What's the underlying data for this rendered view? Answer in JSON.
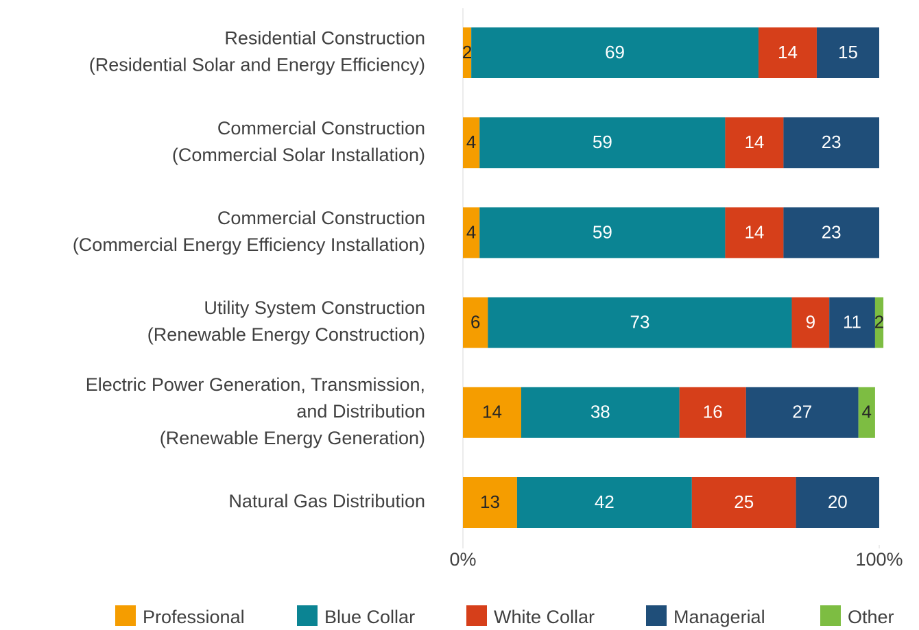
{
  "chart_data": {
    "type": "stacked-barh",
    "categories": [
      [
        "Residential Construction",
        "(Residential Solar and Energy Efficiency)"
      ],
      [
        "Commercial Construction",
        "(Commercial Solar Installation)"
      ],
      [
        "Commercial Construction",
        "(Commercial Energy Efficiency Installation)"
      ],
      [
        "Utility System Construction",
        "(Renewable Energy Construction)"
      ],
      [
        "Electric Power Generation, Transmission,",
        "and Distribution",
        "(Renewable Energy Generation)"
      ],
      [
        "Natural Gas Distribution"
      ]
    ],
    "series": [
      {
        "name": "Professional",
        "color": "#f59d00",
        "label_color": "#262626",
        "values": [
          2,
          4,
          4,
          6,
          14,
          13
        ]
      },
      {
        "name": "Blue Collar",
        "color": "#0b8493",
        "label_color": "#ffffff",
        "values": [
          69,
          59,
          59,
          73,
          38,
          42
        ]
      },
      {
        "name": "White Collar",
        "color": "#d63f1a",
        "label_color": "#ffffff",
        "values": [
          14,
          14,
          14,
          9,
          16,
          25
        ]
      },
      {
        "name": "Managerial",
        "color": "#1f4e79",
        "label_color": "#ffffff",
        "values": [
          15,
          23,
          23,
          11,
          27,
          20
        ]
      },
      {
        "name": "Other",
        "color": "#7dbd42",
        "label_color": "#262626",
        "values": [
          null,
          null,
          null,
          2,
          4,
          null
        ]
      }
    ],
    "xlim": [
      0,
      100
    ],
    "xticks": [
      {
        "value": 0,
        "label": "0%"
      },
      {
        "value": 100,
        "label": "100%"
      }
    ],
    "legend": "bottom"
  }
}
